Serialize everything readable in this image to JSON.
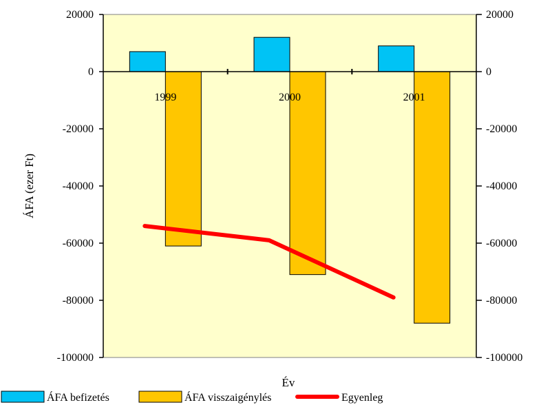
{
  "chart_data": {
    "type": "bar",
    "categories": [
      "1999",
      "2000",
      "2001"
    ],
    "series": [
      {
        "name": "ÁFA befizetés",
        "kind": "bar",
        "color": "#00c3f5",
        "values": [
          7000,
          12000,
          9000
        ]
      },
      {
        "name": "ÁFA visszaigénylés",
        "kind": "bar",
        "color": "#ffc600",
        "values": [
          -61000,
          -71000,
          -88000
        ]
      },
      {
        "name": "Egyenleg",
        "kind": "line",
        "color": "#ff0000",
        "values": [
          -54000,
          -59000,
          -79000
        ]
      }
    ],
    "ylabel": "ÁFA (ezer Ft)",
    "xlabel": "Év",
    "ylim": [
      -100000,
      20000
    ],
    "yticks": [
      20000,
      0,
      -20000,
      -40000,
      -60000,
      -80000,
      -100000
    ],
    "ytick_labels": [
      "20000",
      "0",
      "-20000",
      "-40000",
      "-60000",
      "-80000",
      "-100000"
    ],
    "secondary_yticks": [
      20000,
      0,
      -20000,
      -40000,
      -60000,
      -80000,
      -100000
    ],
    "secondary_ytick_labels": [
      "20000",
      "0",
      "-20000",
      "-40000",
      "-60000",
      "-80000",
      "-100000"
    ],
    "plot_background": "#ffffcc",
    "grid": false,
    "legend_position": "bottom"
  }
}
